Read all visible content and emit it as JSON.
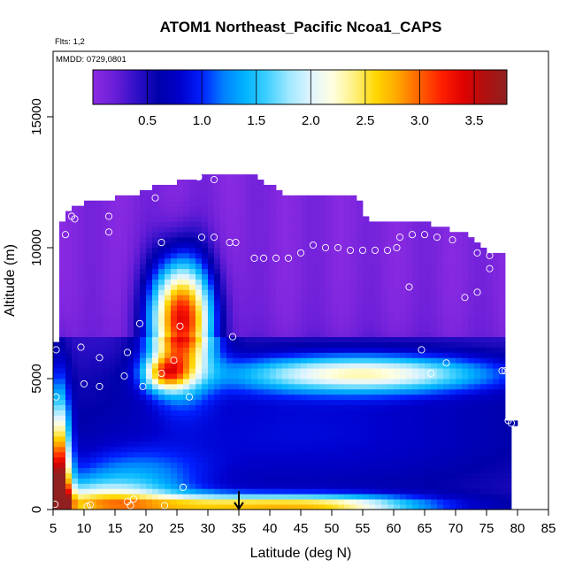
{
  "chart_data": {
    "type": "heatmap",
    "title": "ATOM1 Northeast_Pacific Ncoa1_CAPS",
    "flights_label": "Flts: 1,2",
    "date_label": "MMDD: 0729,0801",
    "xlabel": "Latitude (deg N)",
    "ylabel": "Altitude (m)",
    "xlim": [
      5,
      85
    ],
    "ylim": [
      0,
      17500
    ],
    "x_ticks": [
      "5",
      "10",
      "15",
      "20",
      "25",
      "30",
      "35",
      "40",
      "45",
      "50",
      "55",
      "60",
      "65",
      "70",
      "75",
      "80",
      "85"
    ],
    "y_ticks": [
      "0",
      "5000",
      "10000",
      "15000"
    ],
    "colorbar": {
      "range": [
        0.0,
        3.8
      ],
      "ticks": [
        "0.5",
        "1.0",
        "1.5",
        "2.0",
        "2.5",
        "3.0",
        "3.5"
      ],
      "colors": [
        "#8a2be2",
        "#6a1ed8",
        "#3010c8",
        "#0000aa",
        "#0000cc",
        "#0020ff",
        "#0080ff",
        "#00b4ff",
        "#40d0ff",
        "#a0e8ff",
        "#e0f4ff",
        "#ffffe0",
        "#fff080",
        "#ffd700",
        "#ffa500",
        "#ff6000",
        "#ff2000",
        "#e00000",
        "#b01010",
        "#902020"
      ]
    },
    "grid": false,
    "legend_position": "top",
    "marker_latitude": 35,
    "mask_polygon": [
      [
        5.0,
        0
      ],
      [
        79.5,
        0
      ],
      [
        79.5,
        3200
      ],
      [
        80.0,
        3200
      ],
      [
        80.0,
        3500
      ],
      [
        78.5,
        3500
      ],
      [
        78.5,
        9700
      ],
      [
        76.0,
        9800
      ],
      [
        72.5,
        10500
      ],
      [
        65.0,
        11000
      ],
      [
        56.0,
        11000
      ],
      [
        54.0,
        12100
      ],
      [
        42.0,
        12100
      ],
      [
        37.0,
        12800
      ],
      [
        30.0,
        12800
      ],
      [
        27.5,
        12600
      ],
      [
        22.0,
        12400
      ],
      [
        19.5,
        12100
      ],
      [
        8.0,
        11600
      ],
      [
        6.5,
        11000
      ],
      [
        6.5,
        6400
      ],
      [
        5.0,
        6400
      ]
    ],
    "plumes": [
      {
        "lat": 6.0,
        "alt": 400,
        "slat": 1.2,
        "salt": 2500,
        "amp": 3.4,
        "tilt": -0.04,
        "skew": 1
      },
      {
        "lat": 12.0,
        "alt": 250,
        "slat": 9.0,
        "salt": 600,
        "amp": 1.6,
        "tilt": 0.0,
        "skew": 0
      },
      {
        "lat": 38.0,
        "alt": 150,
        "slat": 18.0,
        "salt": 300,
        "amp": 2.1,
        "tilt": 0.0,
        "skew": 0
      },
      {
        "lat": 52.0,
        "alt": 150,
        "slat": 8.0,
        "salt": 250,
        "amp": 0.4,
        "tilt": 0.0,
        "skew": 0
      },
      {
        "lat": 25.7,
        "alt": 7300,
        "slat": 3.5,
        "salt": 1600,
        "amp": 3.3,
        "tilt": 0.0,
        "skew": 0
      },
      {
        "lat": 55.0,
        "alt": 5200,
        "slat": 15.0,
        "salt": 500,
        "amp": 1.7,
        "tilt": 0.0,
        "skew": 0
      },
      {
        "lat": 23.0,
        "alt": 5200,
        "slat": 2.5,
        "salt": 450,
        "amp": 1.5,
        "tilt": 0.0,
        "skew": 0
      },
      {
        "lat": 45.0,
        "alt": 3000,
        "slat": 30.0,
        "salt": 2000,
        "amp": 0.5,
        "tilt": 0.0,
        "skew": 0
      },
      {
        "lat": 18.0,
        "alt": 1400,
        "slat": 8.0,
        "salt": 700,
        "amp": 0.6,
        "tilt": 0.0,
        "skew": 0
      }
    ],
    "background": {
      "base": 0.35,
      "high_alt_value": 0.08,
      "high_alt_threshold": 6500
    },
    "obs_points": [
      [
        5.3,
        200
      ],
      [
        10.5,
        120
      ],
      [
        11.0,
        180
      ],
      [
        17.5,
        150
      ],
      [
        18.0,
        400
      ],
      [
        17.0,
        300
      ],
      [
        23.0,
        150
      ],
      [
        26.0,
        850
      ],
      [
        5.5,
        4300
      ],
      [
        10.0,
        4800
      ],
      [
        12.5,
        4700
      ],
      [
        19.5,
        4700
      ],
      [
        16.5,
        5100
      ],
      [
        24.5,
        5700
      ],
      [
        27.0,
        4300
      ],
      [
        22.5,
        5200
      ],
      [
        9.5,
        6200
      ],
      [
        12.5,
        5800
      ],
      [
        17.0,
        6000
      ],
      [
        5.5,
        6100
      ],
      [
        34.0,
        6600
      ],
      [
        19.0,
        7100
      ],
      [
        25.5,
        7000
      ],
      [
        68.5,
        5600
      ],
      [
        66.0,
        5200
      ],
      [
        64.5,
        6100
      ],
      [
        77.5,
        5300
      ],
      [
        78.0,
        5300
      ],
      [
        79.0,
        3300
      ],
      [
        78.5,
        3400
      ],
      [
        75.5,
        9200
      ],
      [
        75.5,
        9700
      ],
      [
        73.5,
        9800
      ],
      [
        71.5,
        8100
      ],
      [
        73.5,
        8300
      ],
      [
        62.5,
        8500
      ],
      [
        61.0,
        10400
      ],
      [
        63.0,
        10500
      ],
      [
        65.0,
        10500
      ],
      [
        67.0,
        10400
      ],
      [
        69.5,
        10300
      ],
      [
        60.5,
        10000
      ],
      [
        59.0,
        9900
      ],
      [
        57.0,
        9900
      ],
      [
        55.0,
        9900
      ],
      [
        53.0,
        9900
      ],
      [
        51.0,
        10000
      ],
      [
        49.0,
        10000
      ],
      [
        47.0,
        10100
      ],
      [
        45.0,
        9800
      ],
      [
        43.0,
        9600
      ],
      [
        41.0,
        9600
      ],
      [
        39.0,
        9600
      ],
      [
        37.5,
        9600
      ],
      [
        34.5,
        10200
      ],
      [
        33.5,
        10200
      ],
      [
        31.0,
        10400
      ],
      [
        29.0,
        10400
      ],
      [
        22.5,
        10200
      ],
      [
        21.5,
        11900
      ],
      [
        8.5,
        11100
      ],
      [
        8.0,
        11200
      ],
      [
        7.0,
        10500
      ],
      [
        14.0,
        11200
      ],
      [
        14.0,
        10600
      ],
      [
        28.5,
        12700
      ],
      [
        31.0,
        12600
      ]
    ]
  }
}
